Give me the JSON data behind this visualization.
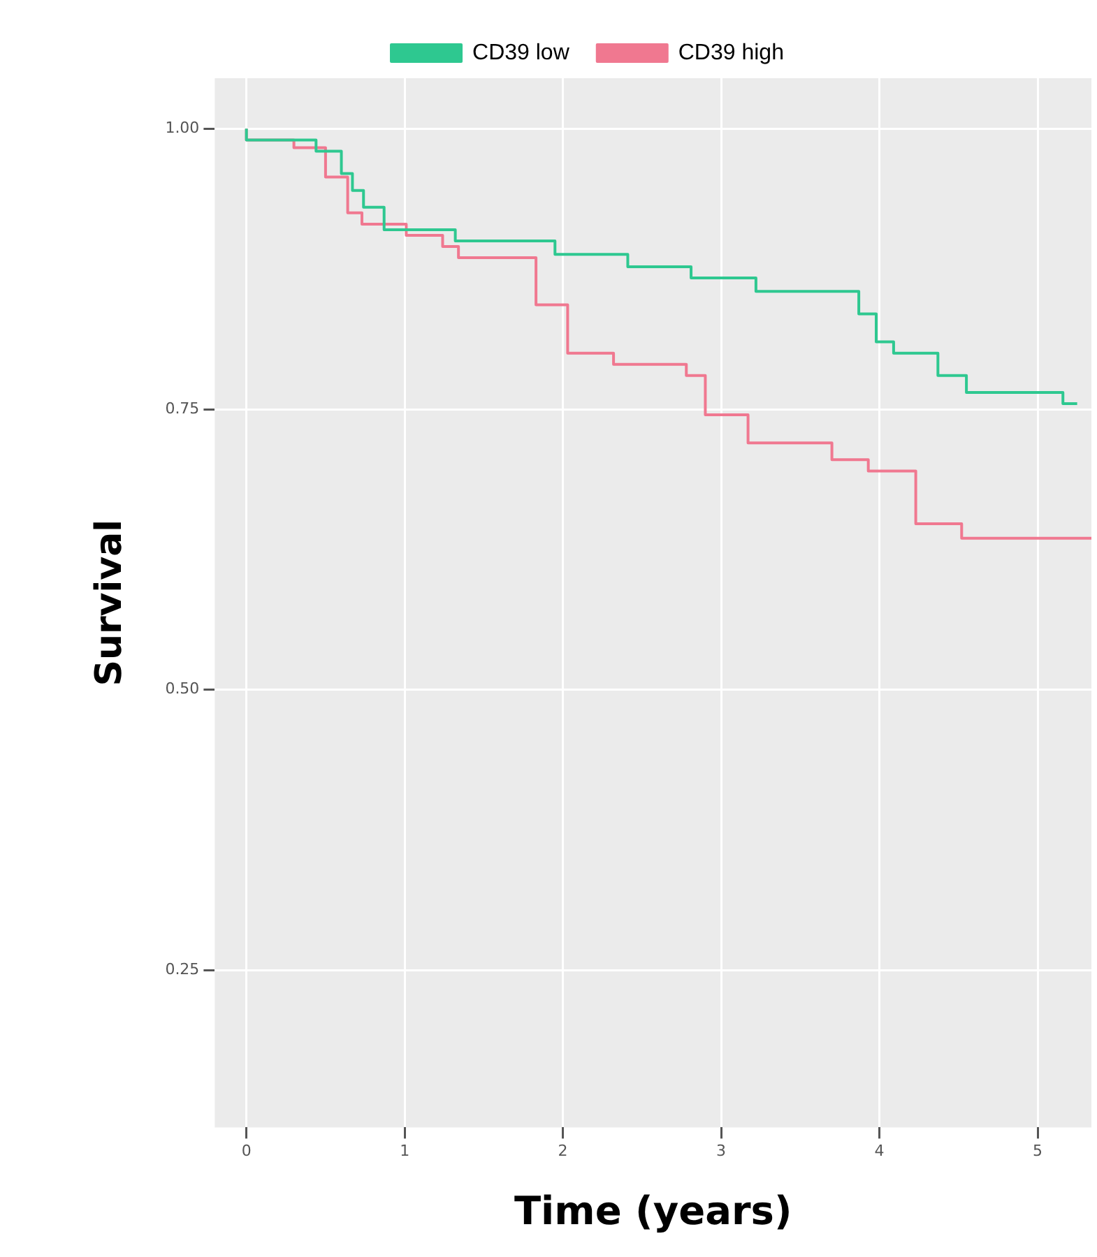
{
  "chart_data": {
    "type": "step",
    "xlabel": "Time (years)",
    "ylabel": "Survival",
    "series": [
      {
        "name": "CD39 high",
        "color": "#f07890",
        "x": [
          0,
          0.3,
          0.5,
          0.64,
          0.73,
          1.01,
          1.24,
          1.34,
          1.83,
          2.03,
          2.32,
          2.78,
          2.9,
          3.17,
          3.7,
          3.93,
          4.23,
          4.52,
          5.04,
          5.34
        ],
        "values": [
          1,
          0.99,
          0.983,
          0.957,
          0.925,
          0.915,
          0.905,
          0.895,
          0.885,
          0.843,
          0.8,
          0.79,
          0.78,
          0.745,
          0.72,
          0.705,
          0.695,
          0.648,
          0.635,
          0.635
        ]
      },
      {
        "name": "CD39 low",
        "color": "#2ec890",
        "x": [
          0,
          0.44,
          0.6,
          0.67,
          0.74,
          0.87,
          1.32,
          1.95,
          2.41,
          2.81,
          3.22,
          3.87,
          3.98,
          4.09,
          4.37,
          4.55,
          5.16,
          5.21,
          5.25
        ],
        "values": [
          1,
          0.99,
          0.98,
          0.96,
          0.945,
          0.93,
          0.91,
          0.9,
          0.888,
          0.877,
          0.867,
          0.855,
          0.835,
          0.81,
          0.8,
          0.78,
          0.765,
          0.755,
          0.755
        ]
      }
    ],
    "xlim": [
      -0.2,
      5.34
    ],
    "xticks": [
      0,
      1,
      2,
      3,
      4,
      5
    ],
    "ylim": [
      0.11,
      1.045
    ],
    "yticks": [
      {
        "value": 0.25,
        "label": "0.25"
      },
      {
        "value": 0.5,
        "label": "0.50"
      },
      {
        "value": 0.75,
        "label": "0.75"
      },
      {
        "value": 1,
        "label": "1.00"
      }
    ],
    "grid": true,
    "legend": "top",
    "marker": "none",
    "line_style": "solid"
  }
}
